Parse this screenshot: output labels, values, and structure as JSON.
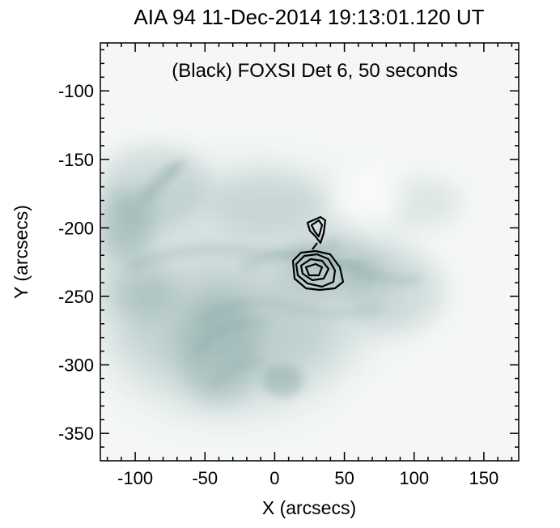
{
  "title": "AIA 94 11-Dec-2014 19:13:01.120 UT",
  "annotation": "(Black) FOXSI Det 6, 50 seconds",
  "x_axis": {
    "label": "X (arcsecs)",
    "range": [
      -125,
      175
    ],
    "ticks": [
      -100,
      -50,
      0,
      50,
      100,
      150
    ]
  },
  "y_axis": {
    "label": "Y (arcsecs)",
    "range": [
      -370,
      -65
    ],
    "ticks": [
      -100,
      -150,
      -200,
      -250,
      -300,
      -350
    ]
  },
  "colors": {
    "background": "#f4f7f6",
    "emission": "#5e8a88",
    "contour": "#000000"
  }
}
